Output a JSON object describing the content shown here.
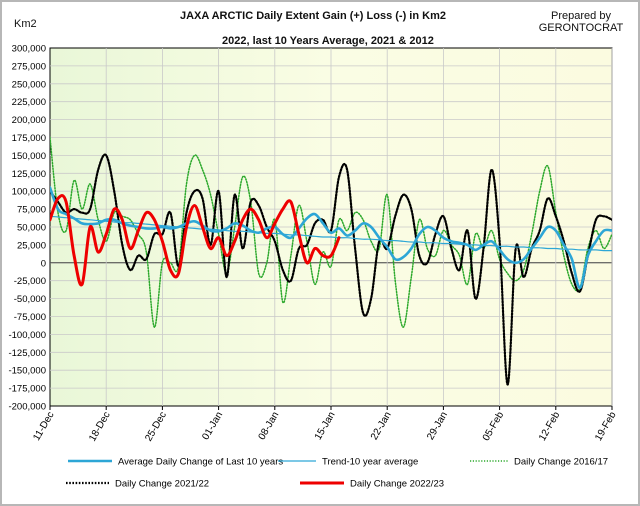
{
  "chart_data": {
    "type": "line",
    "title": "JAXA ARCTIC Daily Extent Gain (+) Loss (-) in Km2",
    "subtitle": "2022, last 10 Years Average, 2021 & 2012",
    "ylabel": "Km2",
    "credit": "Prepared by GERONTOCRAT",
    "ylim": [
      -200000,
      300000
    ],
    "ytick_step": 25000,
    "yticks": [
      "300,000",
      "275,000",
      "250,000",
      "225,000",
      "200,000",
      "175,000",
      "150,000",
      "125,000",
      "100,000",
      "75,000",
      "50,000",
      "25,000",
      "0",
      "-25,000",
      "-50,000",
      "-75,000",
      "-100,000",
      "-125,000",
      "-150,000",
      "-175,000",
      "-200,000"
    ],
    "xtick_labels": [
      "11-Dec",
      "18-Dec",
      "25-Dec",
      "01-Jan",
      "08-Jan",
      "15-Jan",
      "22-Jan",
      "29-Jan",
      "05-Feb",
      "12-Feb",
      "19-Feb"
    ],
    "x_days": 70,
    "grid": true,
    "legend_position": "bottom",
    "series": [
      {
        "name": "Average Daily Change of Last 10 years",
        "color": "#2da6d6",
        "style": "solid-thick",
        "values": [
          105000,
          75000,
          68000,
          62000,
          55000,
          54000,
          55000,
          60000,
          60000,
          55000,
          52000,
          50000,
          48000,
          48000,
          50000,
          48000,
          50000,
          55000,
          58000,
          52000,
          45000,
          44000,
          48000,
          55000,
          52000,
          45000,
          42000,
          48000,
          50000,
          40000,
          35000,
          48000,
          62000,
          68000,
          55000,
          42000,
          48000,
          38000,
          45000,
          55000,
          50000,
          35000,
          22000,
          5000,
          8000,
          20000,
          40000,
          50000,
          45000,
          35000,
          30000,
          28000,
          25000,
          18000,
          25000,
          30000,
          18000,
          5000,
          0,
          5000,
          20000,
          35000,
          50000,
          45000,
          25000,
          5000,
          -35000,
          10000,
          30000,
          45000,
          45000
        ]
      },
      {
        "name": "Trend-10 year average",
        "color": "#2da6d6",
        "style": "solid-thin",
        "values": [
          65000,
          64000,
          63000,
          62000,
          61000,
          60000,
          59000,
          58000,
          57000,
          56000,
          56000,
          55000,
          54000,
          53000,
          52000,
          51000,
          50000,
          49000,
          48000,
          47000,
          47000,
          46000,
          45000,
          44000,
          44000,
          43000,
          42000,
          41000,
          41000,
          40000,
          39000,
          39000,
          38000,
          37000,
          36000,
          36000,
          35000,
          35000,
          34000,
          33000,
          33000,
          32000,
          31000,
          31000,
          30000,
          29000,
          29000,
          28000,
          28000,
          27000,
          27000,
          26000,
          25000,
          25000,
          24000,
          24000,
          23000,
          23000,
          22000,
          22000,
          21000,
          21000,
          20000,
          20000,
          19000,
          19000,
          18000,
          18000,
          18000,
          17000,
          17000
        ]
      },
      {
        "name": "Daily Change 2016/17",
        "color": "#2ba82b",
        "style": "dotted",
        "values": [
          175000,
          70000,
          45000,
          115000,
          75000,
          110000,
          60000,
          30000,
          70000,
          65000,
          60000,
          40000,
          15000,
          -90000,
          0,
          0,
          -5000,
          110000,
          150000,
          130000,
          95000,
          40000,
          -15000,
          50000,
          120000,
          85000,
          -15000,
          0,
          60000,
          -55000,
          10000,
          80000,
          30000,
          -30000,
          15000,
          -5000,
          60000,
          45000,
          70000,
          60000,
          30000,
          20000,
          95000,
          -25000,
          -90000,
          -20000,
          60000,
          20000,
          10000,
          45000,
          25000,
          10000,
          -30000,
          40000,
          20000,
          45000,
          5000,
          -15000,
          -25000,
          -10000,
          40000,
          100000,
          135000,
          70000,
          10000,
          -30000,
          -35000,
          20000,
          45000,
          20000,
          40000
        ]
      },
      {
        "name": "Daily Change 2021/22",
        "color": "#000000",
        "style": "dotted",
        "values": [
          100000,
          85000,
          70000,
          75000,
          70000,
          75000,
          130000,
          150000,
          100000,
          25000,
          -10000,
          10000,
          5000,
          40000,
          40000,
          70000,
          -5000,
          70000,
          100000,
          90000,
          25000,
          100000,
          -20000,
          95000,
          20000,
          85000,
          80000,
          50000,
          30000,
          -10000,
          -25000,
          20000,
          25000,
          55000,
          60000,
          45000,
          120000,
          130000,
          20000,
          -70000,
          -50000,
          30000,
          20000,
          65000,
          95000,
          75000,
          10000,
          0,
          40000,
          65000,
          20000,
          -10000,
          45000,
          -50000,
          20000,
          130000,
          30000,
          -170000,
          20000,
          -20000,
          20000,
          45000,
          90000,
          65000,
          30000,
          -15000,
          -40000,
          10000,
          60000,
          65000,
          60000
        ]
      },
      {
        "name": "Daily Change 2022/23",
        "color": "#ee0000",
        "style": "solid-thick",
        "values": [
          60000,
          90000,
          85000,
          10000,
          -30000,
          50000,
          15000,
          40000,
          75000,
          60000,
          20000,
          45000,
          70000,
          60000,
          30000,
          -10000,
          -15000,
          50000,
          80000,
          50000,
          20000,
          35000,
          10000,
          30000,
          60000,
          75000,
          60000,
          35000,
          55000,
          75000,
          85000,
          40000,
          0,
          20000,
          10000,
          10000,
          35000
        ]
      }
    ]
  }
}
